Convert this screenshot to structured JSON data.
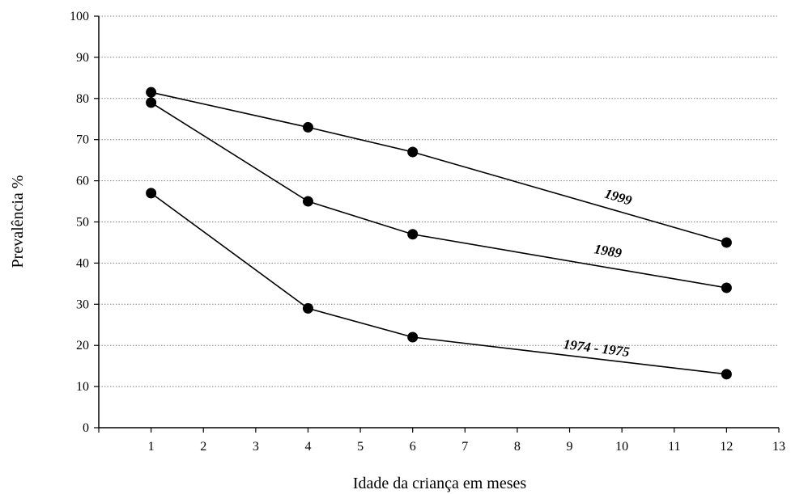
{
  "chart_data": {
    "type": "line",
    "title": "",
    "xlabel": "Idade da criança em meses",
    "ylabel": "Prevalência %",
    "xlim": [
      0,
      13
    ],
    "ylim": [
      0,
      100
    ],
    "x_ticks": [
      "1",
      "2",
      "3",
      "4",
      "5",
      "6",
      "7",
      "8",
      "9",
      "10",
      "11",
      "12",
      "13"
    ],
    "y_ticks": [
      "0",
      "10",
      "20",
      "30",
      "40",
      "50",
      "60",
      "70",
      "80",
      "90",
      "100"
    ],
    "grid": "horizontal dotted",
    "legend": "none; series labelled inline next to their lines",
    "series": [
      {
        "name": "1999",
        "x": [
          1,
          4,
          6,
          12
        ],
        "y": [
          81.5,
          73,
          67,
          45
        ]
      },
      {
        "name": "1989",
        "x": [
          1,
          4,
          6,
          12
        ],
        "y": [
          79,
          55,
          47,
          34
        ]
      },
      {
        "name": "1974 - 1975",
        "x": [
          1,
          4,
          6,
          12
        ],
        "y": [
          57,
          29,
          22,
          13
        ]
      }
    ],
    "colors": {
      "line": "#000000",
      "marker": "#000000",
      "grid": "#808080",
      "axis": "#000000"
    }
  }
}
